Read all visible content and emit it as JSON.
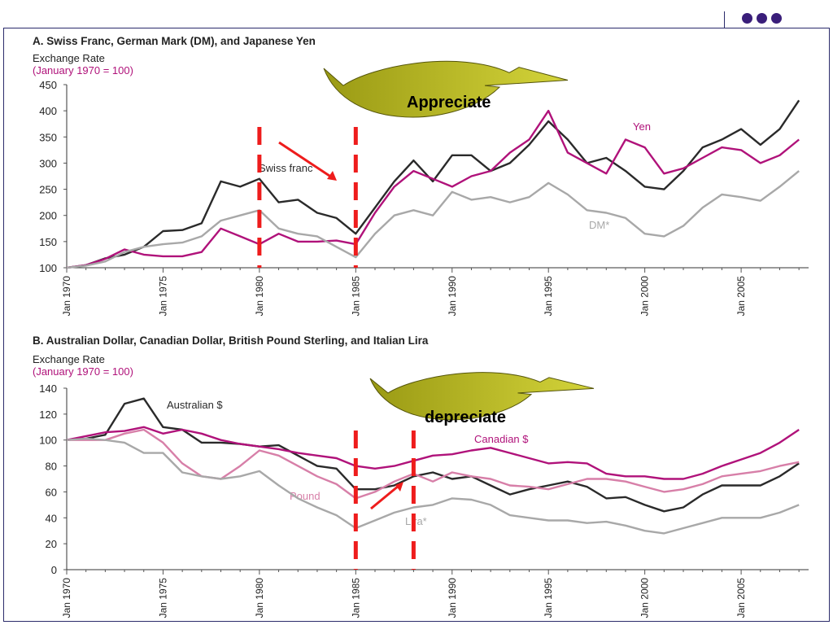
{
  "header": {
    "dots": 3
  },
  "colors": {
    "swiss": "#2a2a2a",
    "yen": "#b0127a",
    "dm": "#a8a8a8",
    "aud": "#2a2a2a",
    "cad": "#b0127a",
    "gbp": "#d77fa8",
    "lira": "#a8a8a8",
    "marker": "#ee1c1c",
    "swoosh": "#9a9a14",
    "swoosh_light": "#d4d43a"
  },
  "chart_data": [
    {
      "type": "line",
      "title": "A. Swiss Franc, German Mark (DM), and Japanese Yen",
      "ylabel": "Exchange Rate",
      "ylabel_note": "(January 1970 = 100)",
      "ylim": [
        100,
        450
      ],
      "yticks": [
        100,
        150,
        200,
        250,
        300,
        350,
        400,
        450
      ],
      "xlim": [
        1970,
        2008.5
      ],
      "xticks": [
        "Jan 1970",
        "Jan 1975",
        "Jan 1980",
        "Jan 1985",
        "Jan 1990",
        "Jan 1995",
        "Jan 2000",
        "Jan 2005"
      ],
      "series": [
        {
          "name": "Swiss franc",
          "color_key": "swiss",
          "x": [
            1970,
            1971,
            1972,
            1973,
            1974,
            1975,
            1976,
            1977,
            1978,
            1979,
            1980,
            1981,
            1982,
            1983,
            1984,
            1985,
            1986,
            1987,
            1988,
            1989,
            1990,
            1991,
            1992,
            1993,
            1994,
            1995,
            1996,
            1997,
            1998,
            1999,
            2000,
            2001,
            2002,
            2003,
            2004,
            2005,
            2006,
            2007,
            2008
          ],
          "y": [
            100,
            105,
            118,
            125,
            140,
            170,
            172,
            185,
            265,
            255,
            270,
            225,
            230,
            205,
            195,
            165,
            215,
            265,
            305,
            265,
            315,
            315,
            285,
            300,
            335,
            380,
            345,
            300,
            310,
            285,
            255,
            250,
            285,
            330,
            345,
            365,
            335,
            365,
            420
          ]
        },
        {
          "name": "Yen",
          "color_key": "yen",
          "x": [
            1970,
            1971,
            1972,
            1973,
            1974,
            1975,
            1976,
            1977,
            1978,
            1979,
            1980,
            1981,
            1982,
            1983,
            1984,
            1985,
            1986,
            1987,
            1988,
            1989,
            1990,
            1991,
            1992,
            1993,
            1994,
            1995,
            1996,
            1997,
            1998,
            1999,
            2000,
            2001,
            2002,
            2003,
            2004,
            2005,
            2006,
            2007,
            2008
          ],
          "y": [
            100,
            105,
            117,
            135,
            125,
            122,
            122,
            130,
            175,
            160,
            145,
            165,
            150,
            150,
            152,
            145,
            205,
            255,
            285,
            270,
            255,
            275,
            285,
            320,
            345,
            400,
            320,
            300,
            280,
            345,
            330,
            280,
            290,
            310,
            330,
            325,
            300,
            315,
            345
          ]
        },
        {
          "name": "DM*",
          "color_key": "dm",
          "x": [
            1970,
            1971,
            1972,
            1973,
            1974,
            1975,
            1976,
            1977,
            1978,
            1979,
            1980,
            1981,
            1982,
            1983,
            1984,
            1985,
            1986,
            1987,
            1988,
            1989,
            1990,
            1991,
            1992,
            1993,
            1994,
            1995,
            1996,
            1997,
            1998,
            1999,
            2000,
            2001,
            2002,
            2003,
            2004,
            2005,
            2006,
            2007,
            2008
          ],
          "y": [
            100,
            104,
            112,
            130,
            140,
            145,
            148,
            160,
            190,
            200,
            210,
            175,
            165,
            160,
            140,
            120,
            165,
            200,
            210,
            200,
            245,
            230,
            235,
            225,
            235,
            262,
            240,
            210,
            205,
            195,
            165,
            160,
            180,
            215,
            240,
            235,
            228,
            255,
            285
          ]
        }
      ],
      "annotations": {
        "arrow_text": "Appreciate",
        "markers_year": [
          1980,
          1985
        ]
      }
    },
    {
      "type": "line",
      "title": "B. Australian Dollar, Canadian Dollar, British Pound Sterling, and Italian Lira",
      "ylabel": "Exchange Rate",
      "ylabel_note": "(January 1970 = 100)",
      "ylim": [
        0,
        140
      ],
      "yticks": [
        0,
        20,
        40,
        60,
        80,
        100,
        120,
        140
      ],
      "xlim": [
        1970,
        2008.5
      ],
      "xticks": [
        "Jan 1970",
        "Jan 1975",
        "Jan 1980",
        "Jan 1985",
        "Jan 1990",
        "Jan 1995",
        "Jan 2000",
        "Jan 2005"
      ],
      "series": [
        {
          "name": "Australian $",
          "color_key": "aud",
          "x": [
            1970,
            1971,
            1972,
            1973,
            1974,
            1975,
            1976,
            1977,
            1978,
            1979,
            1980,
            1981,
            1982,
            1983,
            1984,
            1985,
            1986,
            1987,
            1988,
            1989,
            1990,
            1991,
            1992,
            1993,
            1994,
            1995,
            1996,
            1997,
            1998,
            1999,
            2000,
            2001,
            2002,
            2003,
            2004,
            2005,
            2006,
            2007,
            2008
          ],
          "y": [
            100,
            101,
            104,
            128,
            132,
            110,
            108,
            98,
            98,
            97,
            95,
            96,
            88,
            80,
            78,
            62,
            62,
            65,
            72,
            75,
            70,
            72,
            65,
            58,
            62,
            65,
            68,
            64,
            55,
            56,
            50,
            45,
            48,
            58,
            65,
            65,
            65,
            72,
            82
          ]
        },
        {
          "name": "Canadian $",
          "color_key": "cad",
          "x": [
            1970,
            1971,
            1972,
            1973,
            1974,
            1975,
            1976,
            1977,
            1978,
            1979,
            1980,
            1981,
            1982,
            1983,
            1984,
            1985,
            1986,
            1987,
            1988,
            1989,
            1990,
            1991,
            1992,
            1993,
            1994,
            1995,
            1996,
            1997,
            1998,
            1999,
            2000,
            2001,
            2002,
            2003,
            2004,
            2005,
            2006,
            2007,
            2008
          ],
          "y": [
            100,
            103,
            106,
            107,
            110,
            105,
            108,
            105,
            100,
            97,
            95,
            93,
            90,
            88,
            86,
            80,
            78,
            80,
            84,
            88,
            89,
            92,
            94,
            90,
            86,
            82,
            83,
            82,
            74,
            72,
            72,
            70,
            70,
            74,
            80,
            85,
            90,
            98,
            108
          ]
        },
        {
          "name": "Pound",
          "color_key": "gbp",
          "x": [
            1970,
            1971,
            1972,
            1973,
            1974,
            1975,
            1976,
            1977,
            1978,
            1979,
            1980,
            1981,
            1982,
            1983,
            1984,
            1985,
            1986,
            1987,
            1988,
            1989,
            1990,
            1991,
            1992,
            1993,
            1994,
            1995,
            1996,
            1997,
            1998,
            1999,
            2000,
            2001,
            2002,
            2003,
            2004,
            2005,
            2006,
            2007,
            2008
          ],
          "y": [
            100,
            100,
            100,
            105,
            108,
            98,
            82,
            72,
            70,
            80,
            92,
            88,
            80,
            72,
            66,
            55,
            60,
            68,
            74,
            68,
            75,
            72,
            70,
            65,
            64,
            62,
            66,
            70,
            70,
            68,
            64,
            60,
            62,
            66,
            72,
            74,
            76,
            80,
            83
          ]
        },
        {
          "name": "Lira*",
          "color_key": "lira",
          "x": [
            1970,
            1971,
            1972,
            1973,
            1974,
            1975,
            1976,
            1977,
            1978,
            1979,
            1980,
            1981,
            1982,
            1983,
            1984,
            1985,
            1986,
            1987,
            1988,
            1989,
            1990,
            1991,
            1992,
            1993,
            1994,
            1995,
            1996,
            1997,
            1998,
            1999,
            2000,
            2001,
            2002,
            2003,
            2004,
            2005,
            2006,
            2007,
            2008
          ],
          "y": [
            100,
            101,
            100,
            98,
            90,
            90,
            75,
            72,
            70,
            72,
            76,
            65,
            55,
            48,
            42,
            32,
            38,
            44,
            48,
            50,
            55,
            54,
            50,
            42,
            40,
            38,
            38,
            36,
            37,
            34,
            30,
            28,
            32,
            36,
            40,
            40,
            40,
            44,
            50
          ]
        }
      ],
      "annotations": {
        "arrow_text": "depreciate",
        "markers_year": [
          1985,
          1988
        ]
      }
    }
  ]
}
